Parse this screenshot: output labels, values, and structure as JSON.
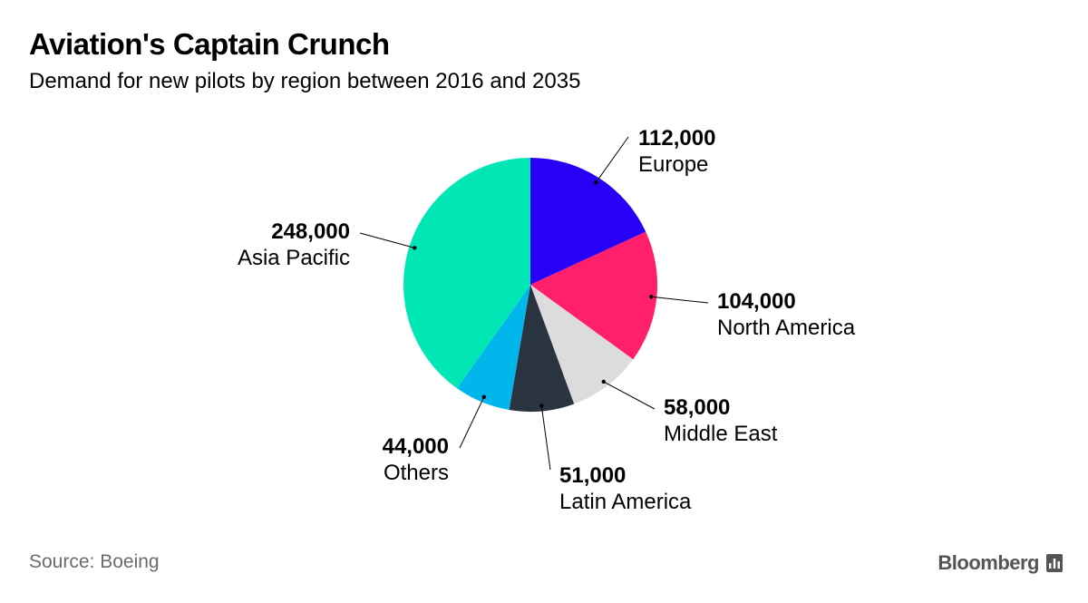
{
  "header": {
    "title": "Aviation's Captain Crunch",
    "subtitle": "Demand for new pilots by region between 2016 and 2035"
  },
  "footer": {
    "source": "Source: Boeing",
    "brand": "Bloomberg"
  },
  "chart_data": {
    "type": "pie",
    "title": "Aviation's Captain Crunch",
    "subtitle": "Demand for new pilots by region between 2016 and 2035",
    "slices": [
      {
        "label": "Europe",
        "value": 112000,
        "value_label": "112,000",
        "color": "#2800f5"
      },
      {
        "label": "North America",
        "value": 104000,
        "value_label": "104,000",
        "color": "#ff1f6a"
      },
      {
        "label": "Middle East",
        "value": 58000,
        "value_label": "58,000",
        "color": "#dcdcdc"
      },
      {
        "label": "Latin America",
        "value": 51000,
        "value_label": "51,000",
        "color": "#2a3440"
      },
      {
        "label": "Others",
        "value": 44000,
        "value_label": "44,000",
        "color": "#00b6ea"
      },
      {
        "label": "Asia Pacific",
        "value": 248000,
        "value_label": "248,000",
        "color": "#00e6b4"
      }
    ],
    "source": "Source: Boeing"
  }
}
